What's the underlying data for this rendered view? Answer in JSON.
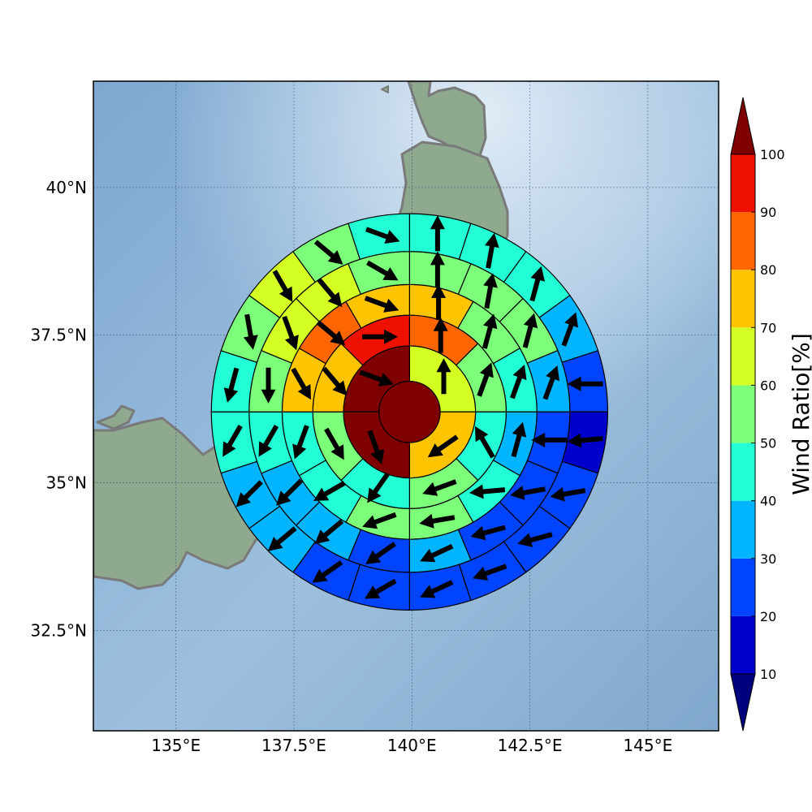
{
  "map": {
    "x_range": [
      133.25,
      146.5
    ],
    "y_range": [
      30.8,
      41.8
    ],
    "x_ticks": [
      135,
      137.5,
      140,
      142.5,
      145
    ],
    "x_tick_labels": [
      "135°E",
      "137.5°E",
      "140°E",
      "142.5°E",
      "145°E"
    ],
    "y_ticks": [
      32.5,
      35,
      37.5,
      40
    ],
    "y_tick_labels": [
      "32.5°N",
      "35°N",
      "37.5°N",
      "40°N"
    ],
    "grid": true,
    "background": "shaded relief map with coastline of Japan",
    "ocean_color": "#8db3d6",
    "land_color": "#8aa88c",
    "coastline_color": "#808080"
  },
  "chart_data": {
    "type": "polar-sector-heatmap",
    "value_name": "Wind Ratio[%]",
    "center": [
      139.95,
      36.2
    ],
    "ring_radii_deg": [
      0.65,
      1.4,
      2.05,
      2.7,
      3.4,
      4.2
    ],
    "rings": [
      {
        "sectors": 1,
        "values": [
          100
        ],
        "arrows_deg": []
      },
      {
        "sectors": 4,
        "values": [
          60,
          75,
          100,
          100
        ],
        "arrows_deg": [
          0,
          235,
          160,
          110
        ]
      },
      {
        "sectors": 8,
        "values": [
          85,
          55,
          45,
          50,
          40,
          55,
          75,
          90
        ],
        "arrows_deg": [
          0,
          20,
          330,
          250,
          215,
          150,
          140,
          90
        ]
      },
      {
        "sectors": 12,
        "values": [
          75,
          55,
          45,
          30,
          45,
          50,
          50,
          45,
          40,
          75,
          85,
          75
        ],
        "arrows_deg": [
          0,
          15,
          20,
          15,
          265,
          260,
          250,
          240,
          200,
          150,
          130,
          110
        ]
      },
      {
        "sectors": 16,
        "values": [
          55,
          55,
          55,
          35,
          20,
          20,
          25,
          30,
          25,
          30,
          30,
          40,
          55,
          65,
          65,
          55
        ],
        "arrows_deg": [
          0,
          10,
          15,
          20,
          270,
          260,
          255,
          245,
          235,
          230,
          225,
          210,
          180,
          160,
          140,
          120
        ]
      },
      {
        "sectors": 20,
        "values": [
          45,
          45,
          45,
          30,
          20,
          10,
          20,
          20,
          20,
          20,
          20,
          20,
          35,
          35,
          40,
          45,
          55,
          65,
          55,
          45
        ],
        "arrows_deg": [
          0,
          10,
          15,
          20,
          270,
          265,
          260,
          255,
          250,
          245,
          240,
          235,
          230,
          225,
          210,
          195,
          170,
          150,
          130,
          110
        ]
      }
    ]
  },
  "colorbar": {
    "title": "Wind Ratio[%]",
    "levels": [
      10,
      20,
      30,
      40,
      50,
      60,
      70,
      80,
      90,
      100
    ],
    "colors": [
      "#0000cc",
      "#0044ff",
      "#00b4ff",
      "#22ffd4",
      "#7cff79",
      "#d4ff22",
      "#ffc400",
      "#ff6600",
      "#ee1100",
      "#7f0000"
    ],
    "under_color": "#00007f",
    "over_color": "#7f0000",
    "labels": [
      "10",
      "20",
      "30",
      "40",
      "50",
      "60",
      "70",
      "80",
      "90",
      "100"
    ]
  }
}
